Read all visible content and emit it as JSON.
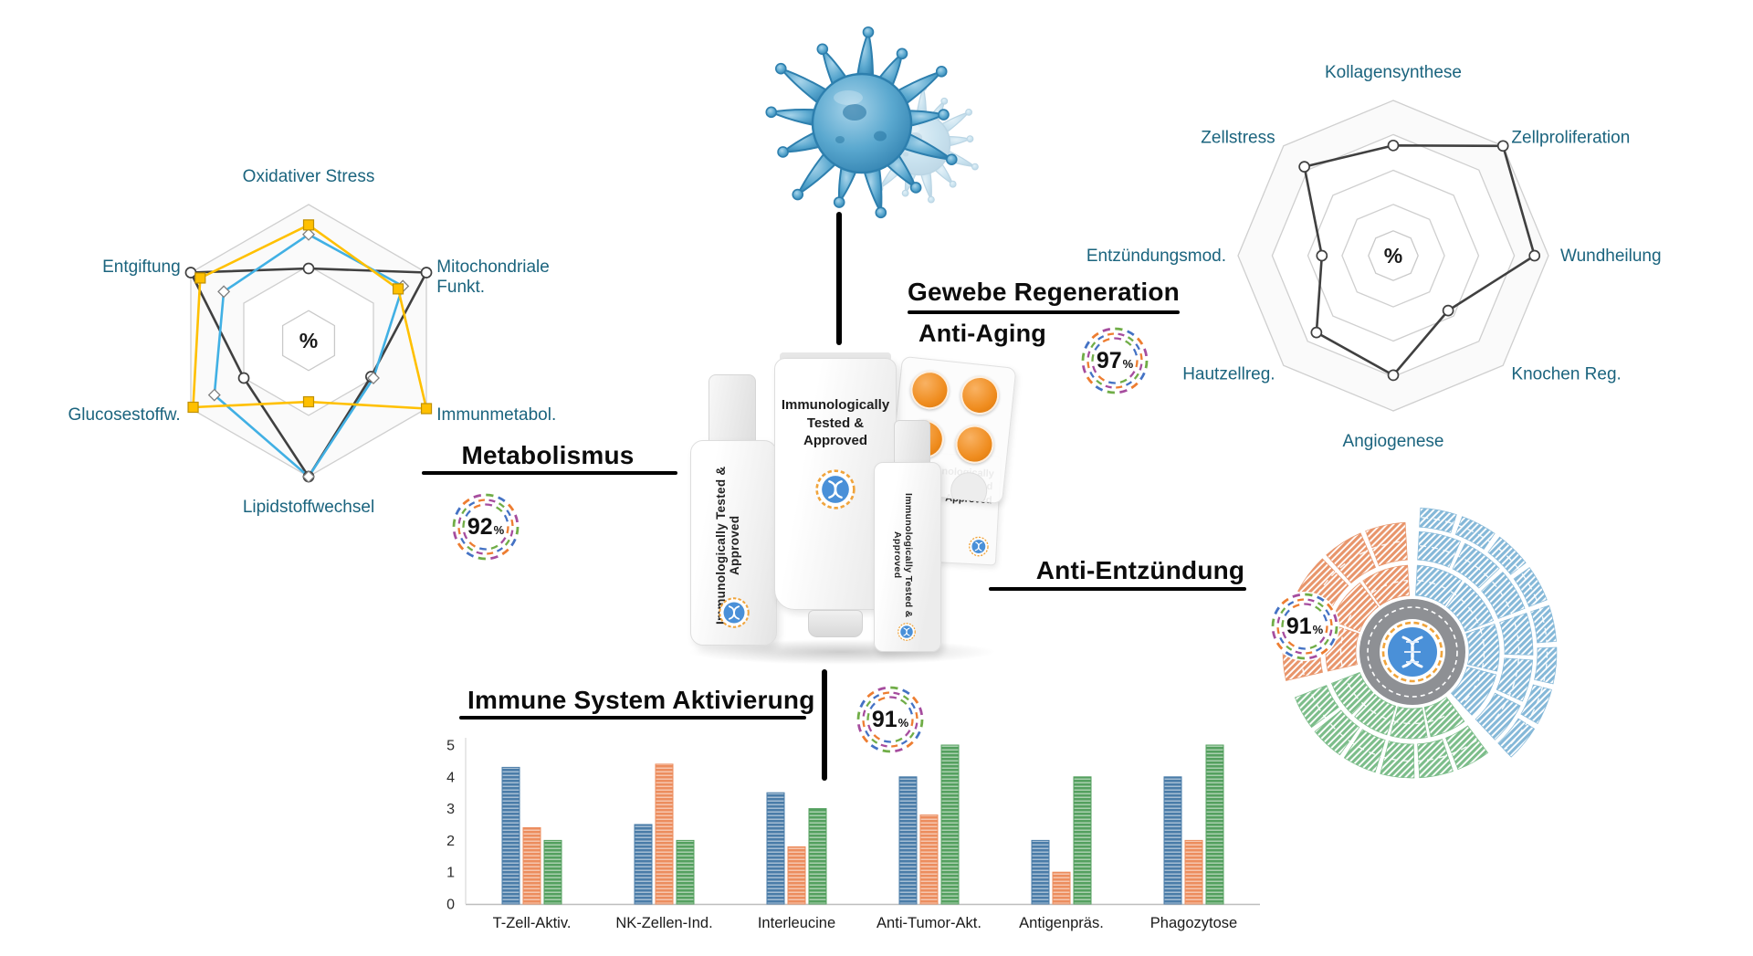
{
  "theme": {
    "background": "#ffffff",
    "radar_label_color": "#1B647E",
    "title_color": "#0c0c0c",
    "connector_color": "#000000",
    "badge_ring_colors": [
      "#70AD47",
      "#4472C4",
      "#ED7D31",
      "#A64D9E"
    ]
  },
  "sections": {
    "metabolismus": {
      "title": "Metabolismus",
      "badge": {
        "value": "92",
        "unit": "%"
      }
    },
    "gewebe": {
      "title": "Gewebe Regeneration",
      "subtitle": "Anti-Aging",
      "badge": {
        "value": "97",
        "unit": "%"
      }
    },
    "anti_entzuendung": {
      "title": "Anti-Entzündung",
      "badge": {
        "value": "91",
        "unit": "%"
      }
    },
    "immune": {
      "title": "Immune System Aktivierung",
      "badge": {
        "value": "91",
        "unit": "%"
      }
    }
  },
  "product": {
    "bottle_label": "Immunologically Tested & Approved",
    "tube_label_lines": [
      "Immunologically",
      "Tested &",
      "Approved"
    ],
    "spray_label": "Immunologically Tested & Approved",
    "box_label_lines": [
      "Immunologically",
      "Tested",
      "Approved"
    ]
  },
  "chart_data": [
    {
      "id": "radar-metabolismus",
      "type": "radar",
      "center_label": "%",
      "rlim": [
        0,
        1
      ],
      "axes": [
        "Oxidativer Stress",
        "Mitochondriale\nFunkt.",
        "Immunmetabol.",
        "Lipidstoffwechsel",
        "Glucosestoffw.",
        "Entgiftung"
      ],
      "series": [
        {
          "name": "schwarz",
          "color": "#404040",
          "marker": "circle",
          "values": [
            0.53,
            1.0,
            0.53,
            1.0,
            0.55,
            1.0
          ]
        },
        {
          "name": "blau",
          "color": "#41B0E4",
          "marker": "diamond",
          "values": [
            0.78,
            0.8,
            0.55,
            1.0,
            0.8,
            0.72
          ]
        },
        {
          "name": "gelb",
          "color": "#FFC000",
          "marker": "square",
          "values": [
            0.85,
            0.76,
            1.0,
            0.45,
            0.98,
            0.92
          ]
        }
      ]
    },
    {
      "id": "radar-regeneration",
      "type": "radar",
      "center_label": "%",
      "rlim": [
        0,
        1
      ],
      "axes": [
        "Kollagensynthese",
        "Zellproliferation",
        "Wundheilung",
        "Knochen Reg.",
        "Angiogenese",
        "Hautzellreg.",
        "Entzündungsmod.",
        "Zellstress"
      ],
      "series": [
        {
          "name": "schwarz",
          "color": "#404040",
          "marker": "circle",
          "values": [
            0.71,
            1.0,
            0.91,
            0.5,
            0.77,
            0.7,
            0.46,
            0.81
          ]
        }
      ]
    },
    {
      "id": "bars-immune",
      "type": "bar",
      "title": "Immune System Aktivierung",
      "categories": [
        "T-Zell-Aktiv.",
        "NK-Zellen-Ind.",
        "Interleucine",
        "Anti-Tumor-Akt.",
        "Antigenpräs.",
        "Phagozytose"
      ],
      "ylim": [
        0,
        5
      ],
      "yticks": [
        0,
        1,
        2,
        3,
        4,
        5
      ],
      "series": [
        {
          "name": "blau",
          "color": "#4A7CA8",
          "values": [
            4.3,
            2.5,
            3.5,
            4.0,
            2.0,
            4.0
          ]
        },
        {
          "name": "orange",
          "color": "#EC8D5E",
          "values": [
            2.4,
            4.4,
            1.8,
            2.8,
            1.0,
            2.0
          ]
        },
        {
          "name": "gruen",
          "color": "#54A05F",
          "values": [
            2.0,
            2.0,
            3.0,
            5.0,
            4.0,
            5.0
          ]
        }
      ]
    },
    {
      "id": "sunburst-inflammation",
      "type": "sunburst",
      "groups": [
        {
          "name": "orange",
          "color": "#E8956B",
          "start": 256,
          "end": 358,
          "bands": [
            [
              62,
              95
            ],
            [
              101,
              142
            ]
          ],
          "cells": [
            3,
            5
          ]
        },
        {
          "name": "blau",
          "color": "#85B8D8",
          "start": 2,
          "end": 138,
          "bands": [
            [
              62,
              95
            ],
            [
              101,
              132
            ],
            [
              137,
              158
            ]
          ],
          "cells": [
            4,
            6,
            8
          ]
        },
        {
          "name": "gruen",
          "color": "#7CBD8A",
          "start": 142,
          "end": 250,
          "bands": [
            [
              62,
              95
            ],
            [
              101,
              138
            ]
          ],
          "cells": [
            4,
            6
          ]
        }
      ]
    }
  ]
}
